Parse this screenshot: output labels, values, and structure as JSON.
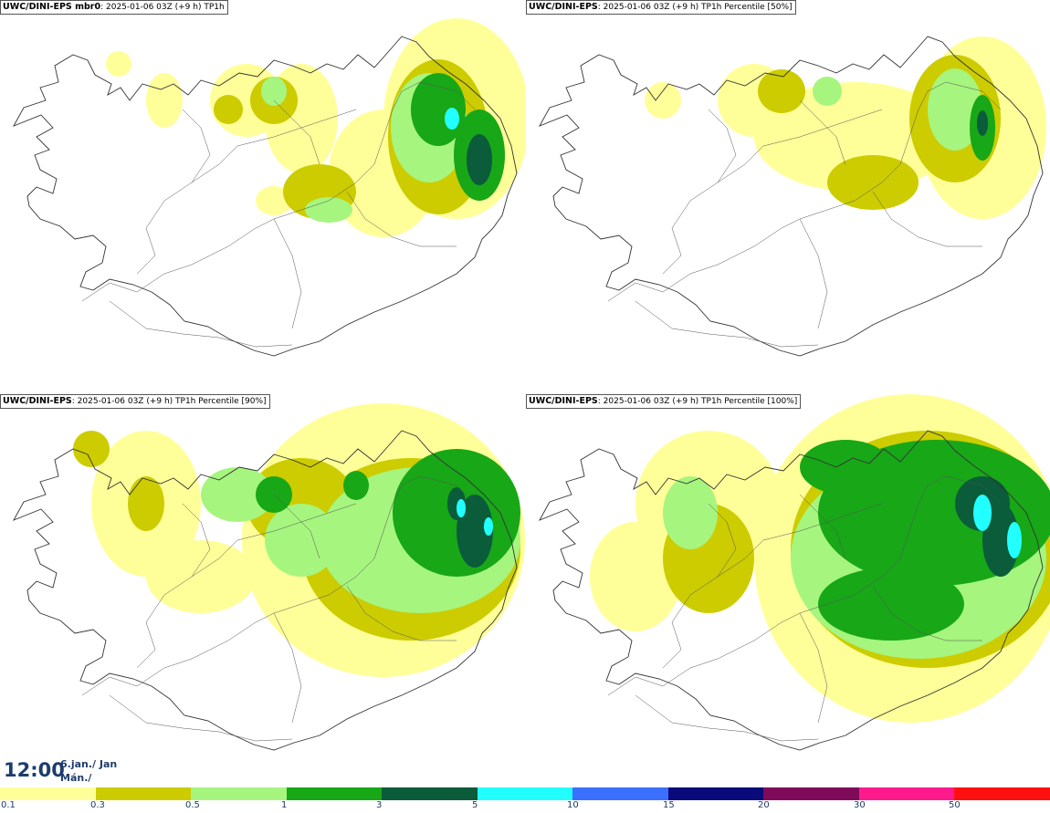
{
  "panels": [
    {
      "model": "UWC/DINI-EPS mbr0",
      "info": ": 2025-01-06 03Z (+9 h) TP1h",
      "variant": "mbr0"
    },
    {
      "model": "UWC/DINI-EPS",
      "info": ": 2025-01-06 03Z (+9 h) TP1h Percentile [50%]",
      "variant": "p50"
    },
    {
      "model": "UWC/DINI-EPS",
      "info": ": 2025-01-06 03Z (+9 h) TP1h Percentile [90%]",
      "variant": "p90"
    },
    {
      "model": "UWC/DINI-EPS",
      "info": ": 2025-01-06 03Z (+9 h) TP1h Percentile [100%]",
      "variant": "p100"
    }
  ],
  "valid_time": {
    "time": "12:00",
    "date_line1": "6.jan./ Jan",
    "date_line2": "Mán./ Mon"
  },
  "colorbar": {
    "colors": [
      "#ffff99",
      "#cccc00",
      "#a6f57e",
      "#17a717",
      "#0a5c3a",
      "#22ffff",
      "#3a6fff",
      "#0a0a7a",
      "#800a5a",
      "#ff1a8c",
      "#ff1010"
    ],
    "tick_labels": [
      "0.1",
      "0.3",
      "0.5",
      "1",
      "3",
      "5",
      "10",
      "15",
      "20",
      "30",
      "50"
    ]
  }
}
